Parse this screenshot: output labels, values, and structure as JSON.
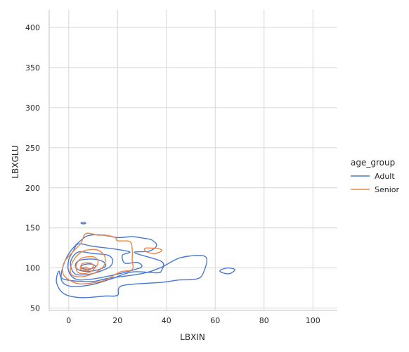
{
  "chart_data": {
    "type": "kde-contour",
    "title": "",
    "xlabel": "LBXIN",
    "ylabel": "LBXGLU",
    "xlim": [
      -8,
      110
    ],
    "ylim": [
      47,
      422
    ],
    "xticks": [
      0,
      20,
      40,
      60,
      80,
      100
    ],
    "yticks": [
      50,
      100,
      150,
      200,
      250,
      300,
      350,
      400
    ],
    "grid": true,
    "legend": {
      "title": "age_group",
      "placement": "right"
    },
    "series": [
      {
        "name": "Adult",
        "color": "#4878d0",
        "contours": [
          [
            [
              6,
              137
            ],
            [
              9,
              141
            ],
            [
              14,
              141
            ],
            [
              20,
              138
            ],
            [
              26,
              139
            ],
            [
              31,
              137
            ],
            [
              34,
              135
            ],
            [
              36,
              128
            ],
            [
              33,
              121
            ],
            [
              27,
              119
            ],
            [
              38,
              108
            ],
            [
              38,
              97
            ],
            [
              36,
              94
            ],
            [
              26,
              95
            ],
            [
              17,
              86
            ],
            [
              9,
              79
            ],
            [
              1,
              77
            ],
            [
              -3,
              85
            ],
            [
              -2,
              105
            ],
            [
              1,
              122
            ],
            [
              6,
              137
            ]
          ],
          [
            [
              4,
              130
            ],
            [
              10,
              127
            ],
            [
              18,
              124
            ],
            [
              25,
              120
            ],
            [
              22,
              116
            ],
            [
              23,
              106
            ],
            [
              28,
              107
            ],
            [
              30,
              102
            ],
            [
              27,
              98
            ],
            [
              18,
              91
            ],
            [
              9,
              86
            ],
            [
              3,
              86
            ],
            [
              0,
              96
            ],
            [
              0,
              110
            ],
            [
              2,
              122
            ],
            [
              4,
              130
            ]
          ],
          [
            [
              4,
              120
            ],
            [
              10,
              118
            ],
            [
              16,
              116
            ],
            [
              18,
              110
            ],
            [
              17,
              102
            ],
            [
              13,
              96
            ],
            [
              8,
              92
            ],
            [
              3,
              92
            ],
            [
              1,
              100
            ],
            [
              1,
              110
            ],
            [
              4,
              120
            ]
          ],
          [
            [
              5,
              110
            ],
            [
              10,
              111
            ],
            [
              14,
              108
            ],
            [
              15,
              102
            ],
            [
              11,
              97
            ],
            [
              6,
              96
            ],
            [
              3,
              100
            ],
            [
              3,
              106
            ],
            [
              5,
              110
            ]
          ],
          [
            [
              6,
              104
            ],
            [
              9,
              105
            ],
            [
              11,
              102
            ],
            [
              9,
              99
            ],
            [
              6,
              99
            ],
            [
              5,
              101
            ],
            [
              6,
              104
            ]
          ],
          [
            [
              -4,
              96
            ],
            [
              -5,
              82
            ],
            [
              -2,
              68
            ],
            [
              5,
              63
            ],
            [
              15,
              65
            ],
            [
              20,
              66
            ],
            [
              22,
              78
            ],
            [
              38,
              82
            ],
            [
              45,
              85
            ],
            [
              52,
              86
            ],
            [
              55,
              93
            ],
            [
              56,
              114
            ],
            [
              46,
              113
            ],
            [
              38,
              101
            ],
            [
              30,
              93
            ],
            [
              16,
              87
            ],
            [
              9,
              83
            ],
            [
              -2,
              86
            ],
            [
              -4,
              96
            ]
          ],
          [
            [
              62,
              97
            ],
            [
              65,
              100
            ],
            [
              68,
              98
            ],
            [
              66,
              93
            ],
            [
              63,
              94
            ],
            [
              62,
              97
            ]
          ],
          [
            [
              6,
              155
            ],
            [
              7,
              156
            ],
            [
              6,
              157
            ],
            [
              5,
              156
            ],
            [
              6,
              155
            ]
          ]
        ]
      },
      {
        "name": "Senior",
        "color": "#ee854a",
        "contours": [
          [
            [
              5,
              131
            ],
            [
              7,
              143
            ],
            [
              12,
              141
            ],
            [
              15,
              141
            ],
            [
              19,
              138
            ],
            [
              20,
              134
            ],
            [
              25,
              133
            ],
            [
              26,
              123
            ],
            [
              26,
              110
            ],
            [
              26,
              98
            ],
            [
              21,
              95
            ],
            [
              15,
              85
            ],
            [
              9,
              81
            ],
            [
              3,
              81
            ],
            [
              -2,
              91
            ],
            [
              -2,
              106
            ],
            [
              1,
              118
            ],
            [
              5,
              131
            ]
          ],
          [
            [
              6,
              121
            ],
            [
              11,
              123
            ],
            [
              14,
              118
            ],
            [
              15,
              110
            ],
            [
              14,
              101
            ],
            [
              10,
              93
            ],
            [
              5,
              89
            ],
            [
              1,
              92
            ],
            [
              1,
              103
            ],
            [
              3,
              114
            ],
            [
              6,
              121
            ]
          ],
          [
            [
              6,
              113
            ],
            [
              10,
              114
            ],
            [
              12,
              109
            ],
            [
              11,
              101
            ],
            [
              8,
              94
            ],
            [
              4,
              94
            ],
            [
              3,
              102
            ],
            [
              4,
              109
            ],
            [
              6,
              113
            ]
          ],
          [
            [
              6,
              106
            ],
            [
              9,
              106
            ],
            [
              10,
              102
            ],
            [
              8,
              97
            ],
            [
              5,
              98
            ],
            [
              5,
              103
            ],
            [
              6,
              106
            ]
          ],
          [
            [
              5,
              100
            ],
            [
              7,
              101
            ],
            [
              8,
              99
            ],
            [
              6,
              97
            ],
            [
              5,
              98
            ],
            [
              5,
              100
            ]
          ],
          [
            [
              32,
              125
            ],
            [
              37,
              124
            ],
            [
              38,
              121
            ],
            [
              35,
              118
            ],
            [
              32,
              120
            ],
            [
              31,
              123
            ],
            [
              32,
              125
            ]
          ]
        ]
      }
    ]
  }
}
